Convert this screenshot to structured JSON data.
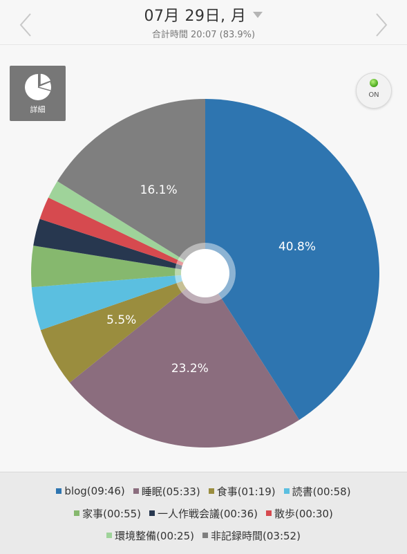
{
  "header": {
    "date_title": "07月 29日, 月",
    "total_time": "合計時間 20:07 (83.9%)"
  },
  "detail_button": {
    "label": "詳細",
    "icon": "pie-chart-icon"
  },
  "toggle": {
    "label": "ON",
    "state": "on",
    "led_color": "#4caf1e"
  },
  "chart_data": {
    "type": "pie",
    "slices": [
      {
        "name": "blog",
        "time": "09:46",
        "percent": 40.8,
        "label": "40.8%",
        "color": "#2e75b0"
      },
      {
        "name": "睡眠",
        "time": "05:33",
        "percent": 23.2,
        "label": "23.2%",
        "color": "#8b6d7e"
      },
      {
        "name": "食事",
        "time": "01:19",
        "percent": 5.5,
        "label": "5.5%",
        "color": "#9a8d3e"
      },
      {
        "name": "読書",
        "time": "00:58",
        "percent": 4.0,
        "label": "",
        "color": "#5bbfe0"
      },
      {
        "name": "家事",
        "time": "00:55",
        "percent": 3.8,
        "label": "",
        "color": "#86b86e"
      },
      {
        "name": "一人作戦会議",
        "time": "00:36",
        "percent": 2.5,
        "label": "",
        "color": "#27374f"
      },
      {
        "name": "散歩",
        "time": "00:30",
        "percent": 2.1,
        "label": "",
        "color": "#d64a4f"
      },
      {
        "name": "環境整備",
        "time": "00:25",
        "percent": 1.7,
        "label": "",
        "color": "#9fd39a"
      },
      {
        "name": "非記録時間",
        "time": "03:52",
        "percent": 16.1,
        "label": "16.1%",
        "color": "#7f7f7f"
      }
    ]
  },
  "legend": {
    "rows": [
      [
        {
          "text": "blog(09:46)",
          "color": "#2e75b0"
        },
        {
          "text": "睡眠(05:33)",
          "color": "#8b6d7e"
        },
        {
          "text": "食事(01:19)",
          "color": "#9a8d3e"
        },
        {
          "text": "読書(00:58)",
          "color": "#5bbfe0"
        }
      ],
      [
        {
          "text": "家事(00:55)",
          "color": "#86b86e"
        },
        {
          "text": "一人作戦会議(00:36)",
          "color": "#27374f"
        },
        {
          "text": "散歩(00:30)",
          "color": "#d64a4f"
        }
      ],
      [
        {
          "text": "環境整備(00:25)",
          "color": "#9fd39a"
        },
        {
          "text": "非記録時間(03:52)",
          "color": "#7f7f7f"
        }
      ]
    ]
  }
}
